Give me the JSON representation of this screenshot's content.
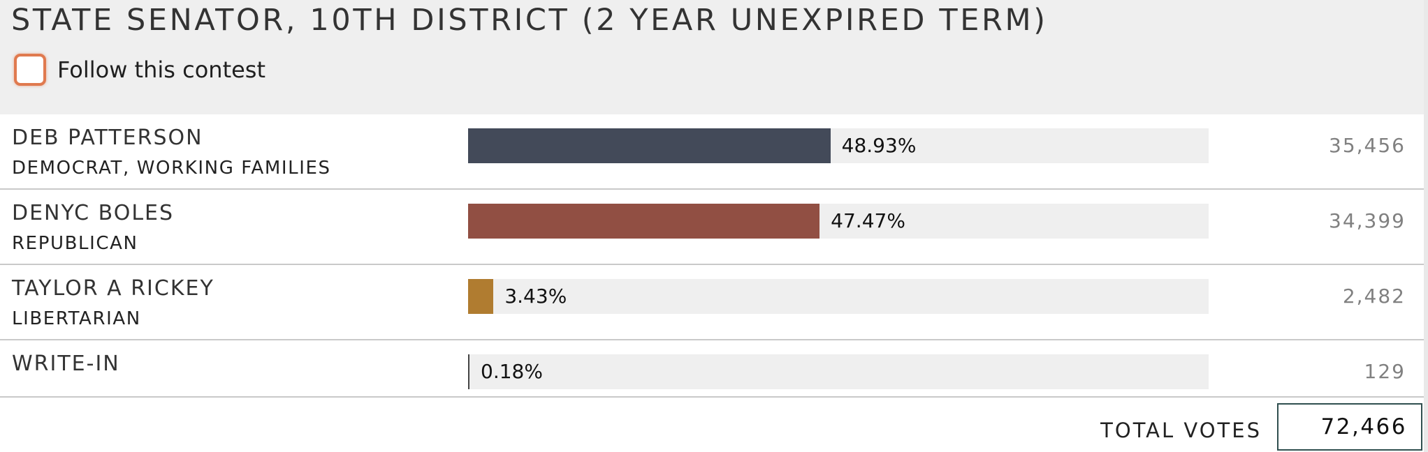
{
  "contest": {
    "title": "STATE SENATOR, 10TH DISTRICT (2 YEAR UNEXPIRED TERM)",
    "follow_label": "Follow this contest",
    "follow_checked": false
  },
  "candidates": [
    {
      "name": "DEB PATTERSON",
      "party": "DEMOCRAT, WORKING FAMILIES",
      "percent": 48.93,
      "percent_label": "48.93%",
      "votes": "35,456",
      "color": "#434a59"
    },
    {
      "name": "DENYC BOLES",
      "party": "REPUBLICAN",
      "percent": 47.47,
      "percent_label": "47.47%",
      "votes": "34,399",
      "color": "#914f43"
    },
    {
      "name": "TAYLOR A RICKEY",
      "party": "LIBERTARIAN",
      "percent": 3.43,
      "percent_label": "3.43%",
      "votes": "2,482",
      "color": "#b07c30"
    },
    {
      "name": "WRITE-IN",
      "party": "",
      "percent": 0.18,
      "percent_label": "0.18%",
      "votes": "129",
      "color": "#444444"
    }
  ],
  "totals": {
    "label": "TOTAL VOTES",
    "value": "72,466"
  }
}
